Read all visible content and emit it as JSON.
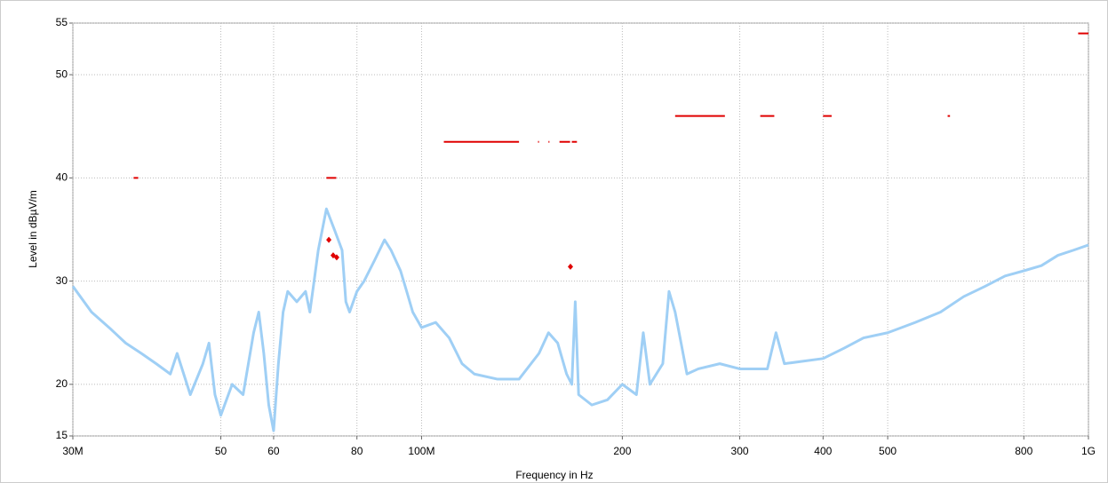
{
  "chart_data": {
    "type": "line",
    "xlabel": "Frequency in Hz",
    "ylabel": "Level in dBµV/m",
    "xscale": "log",
    "grid": true,
    "xlim": [
      30000000,
      1000000000
    ],
    "ylim": [
      15,
      55
    ],
    "xticks": [
      {
        "value": 30000000,
        "label": "30M"
      },
      {
        "value": 50000000,
        "label": "50"
      },
      {
        "value": 60000000,
        "label": "60"
      },
      {
        "value": 80000000,
        "label": "80"
      },
      {
        "value": 100000000,
        "label": "100M"
      },
      {
        "value": 200000000,
        "label": "200"
      },
      {
        "value": 300000000,
        "label": "300"
      },
      {
        "value": 400000000,
        "label": "400"
      },
      {
        "value": 500000000,
        "label": "500"
      },
      {
        "value": 800000000,
        "label": "800"
      },
      {
        "value": 1000000000,
        "label": "1G"
      }
    ],
    "yticks": [
      15,
      20,
      30,
      40,
      50,
      55
    ],
    "series": [
      {
        "style": "line",
        "color": "#9fcff5",
        "width": 3,
        "x": [
          30000000,
          32000000,
          34000000,
          36000000,
          38000000,
          40000000,
          42000000,
          43000000,
          45000000,
          47000000,
          48000000,
          49000000,
          50000000,
          52000000,
          54000000,
          56000000,
          57000000,
          58000000,
          59000000,
          60000000,
          61000000,
          62000000,
          63000000,
          65000000,
          67000000,
          68000000,
          69000000,
          70000000,
          72000000,
          74000000,
          76000000,
          77000000,
          78000000,
          80000000,
          82000000,
          85000000,
          88000000,
          90000000,
          93000000,
          95000000,
          97000000,
          100000000,
          105000000,
          110000000,
          115000000,
          120000000,
          130000000,
          140000000,
          150000000,
          155000000,
          160000000,
          165000000,
          168000000,
          170000000,
          172000000,
          180000000,
          190000000,
          200000000,
          210000000,
          215000000,
          220000000,
          230000000,
          235000000,
          240000000,
          245000000,
          250000000,
          260000000,
          280000000,
          300000000,
          320000000,
          330000000,
          340000000,
          350000000,
          400000000,
          430000000,
          460000000,
          500000000,
          550000000,
          600000000,
          650000000,
          700000000,
          750000000,
          800000000,
          850000000,
          900000000,
          950000000,
          1000000000
        ],
        "values": [
          29.5,
          27,
          25.5,
          24,
          23,
          22,
          21,
          23,
          19,
          22,
          24,
          19,
          17,
          20,
          19,
          25,
          27,
          23,
          18,
          15.5,
          22,
          27,
          29,
          28,
          29,
          27,
          30,
          33,
          37,
          35,
          33,
          28,
          27,
          29,
          30,
          32,
          34,
          33,
          31,
          29,
          27,
          25.5,
          26,
          24.5,
          22,
          21,
          20.5,
          20.5,
          23,
          25,
          24,
          21,
          20,
          28,
          19,
          18,
          18.5,
          20,
          19,
          25,
          20,
          22,
          29,
          27,
          24,
          21,
          21.5,
          22,
          21.5,
          21.5,
          21.5,
          25,
          22,
          22.5,
          23.5,
          24.5,
          25,
          26,
          27,
          28.5,
          29.5,
          30.5,
          31,
          31.5,
          32.5,
          33,
          33.5
        ]
      },
      {
        "style": "line",
        "color": "#e00000",
        "width": 2,
        "x": [
          37000000,
          37600000,
          37600000,
          72000000,
          74500000,
          74500000,
          108000000,
          140000000,
          140000000,
          149500000,
          150000000,
          150000000,
          155000000,
          155500000,
          155500000,
          161000000,
          167000000,
          167000000,
          168000000,
          171000000,
          171000000,
          240000000,
          285000000,
          285000000,
          322000000,
          338000000,
          338000000,
          400000000,
          412000000,
          412000000,
          615000000,
          620000000,
          620000000,
          965000000,
          1000000000
        ],
        "values": [
          40,
          40,
          null,
          40,
          40,
          null,
          43.5,
          43.5,
          null,
          43.5,
          43.5,
          null,
          43.5,
          43.5,
          null,
          43.5,
          43.5,
          null,
          43.5,
          43.5,
          null,
          46,
          46,
          null,
          46,
          46,
          null,
          46,
          46,
          null,
          46,
          46,
          null,
          54,
          54
        ]
      },
      {
        "style": "markers",
        "color": "#e00000",
        "width": 0,
        "x": [
          72600000,
          73700000,
          74600000,
          167200000
        ],
        "values": [
          34,
          32.5,
          32.3,
          31.4
        ]
      }
    ]
  }
}
